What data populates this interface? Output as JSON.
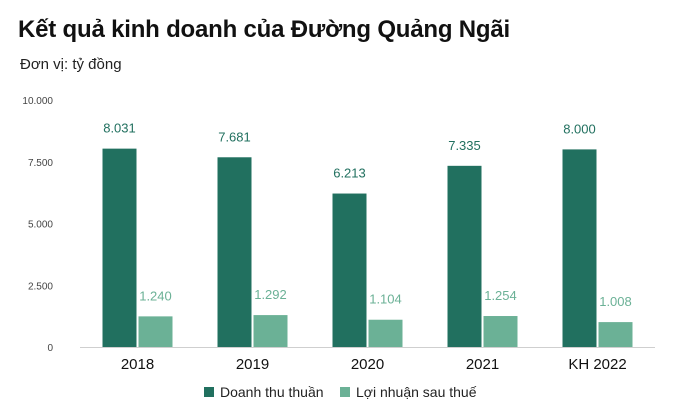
{
  "chart_data": {
    "type": "bar",
    "title": "Kết quả kinh doanh của Đường Quảng Ngãi",
    "subtitle": "Đơn vị: tỷ đồng",
    "categories": [
      "2018",
      "2019",
      "2020",
      "2021",
      "KH 2022"
    ],
    "series": [
      {
        "name": "Doanh thu thuần",
        "values": [
          8031,
          7681,
          6213,
          7335,
          8000
        ],
        "labels": [
          "8.031",
          "7.681",
          "6.213",
          "7.335",
          "8.000"
        ],
        "color": "#21705F",
        "label_color": "#21705F"
      },
      {
        "name": "Lợi nhuận sau thuế",
        "values": [
          1240,
          1292,
          1104,
          1254,
          1008
        ],
        "labels": [
          "1.240",
          "1.292",
          "1.104",
          "1.254",
          "1.008"
        ],
        "color": "#6BB196",
        "label_color": "#6BB196"
      }
    ],
    "ylim": [
      0,
      10000
    ],
    "yticks": [
      0,
      2500,
      5000,
      7500,
      10000
    ],
    "ytick_labels": [
      "0",
      "2.500",
      "5.000",
      "7.500",
      "10.000"
    ],
    "xlabel": "",
    "ylabel": "",
    "grid": false,
    "legend_position": "bottom"
  }
}
